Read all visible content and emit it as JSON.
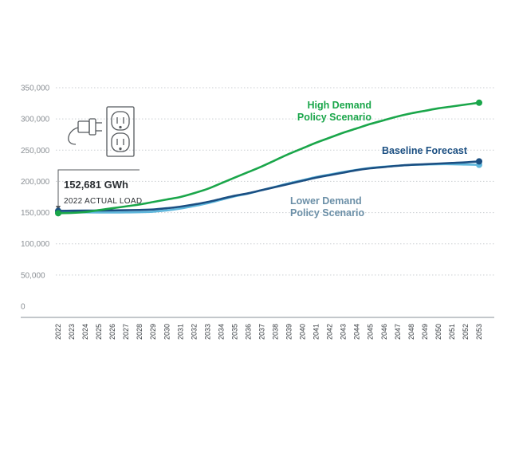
{
  "chart_data": {
    "type": "line",
    "x": [
      "2022",
      "2023",
      "2024",
      "2025",
      "2026",
      "2027",
      "2028",
      "2029",
      "2030",
      "2031",
      "2032",
      "2033",
      "2034",
      "2035",
      "2036",
      "2037",
      "2038",
      "2039",
      "2040",
      "2041",
      "2042",
      "2043",
      "2044",
      "2045",
      "2046",
      "2047",
      "2048",
      "2049",
      "2050",
      "2051",
      "2052",
      "2053"
    ],
    "ylim": [
      0,
      350000
    ],
    "yticks": [
      "0",
      "50,000",
      "100,000",
      "150,000",
      "200,000",
      "250,000",
      "300,000",
      "350,000"
    ],
    "grid": true,
    "series": [
      {
        "name": "High Demand Policy Scenario",
        "name_lines": [
          "High Demand",
          "Policy Scenario"
        ],
        "color": "#1aa64a",
        "values": [
          149000,
          149500,
          151000,
          154000,
          157000,
          160000,
          163000,
          167000,
          171000,
          175000,
          181000,
          188000,
          197000,
          206000,
          215000,
          224000,
          234000,
          244000,
          253000,
          262000,
          270000,
          278000,
          285000,
          292000,
          298000,
          304000,
          309000,
          313000,
          317000,
          320000,
          323000,
          326000
        ]
      },
      {
        "name": "Baseline Forecast",
        "name_lines": [
          "Baseline Forecast"
        ],
        "color": "#1b4f82",
        "values": [
          152681,
          153000,
          153200,
          153300,
          153500,
          153800,
          154200,
          155000,
          157000,
          159500,
          163000,
          167000,
          172000,
          177000,
          181000,
          186000,
          191000,
          196000,
          201000,
          206000,
          210000,
          214000,
          218000,
          221000,
          223000,
          225000,
          226500,
          227500,
          228500,
          229500,
          230500,
          232000
        ]
      },
      {
        "name": "Lower Demand Policy Scenario",
        "name_lines": [
          "Lower Demand",
          "Policy Scenario"
        ],
        "color": "#5fb7dc",
        "values": [
          150500,
          150500,
          150300,
          150200,
          150200,
          150300,
          150600,
          151500,
          153500,
          156500,
          160500,
          165000,
          170500,
          176000,
          180500,
          186000,
          191500,
          197000,
          202000,
          207000,
          211000,
          215000,
          218500,
          221500,
          223500,
          225000,
          226500,
          227000,
          227500,
          227500,
          227000,
          226500
        ]
      }
    ],
    "annotation": {
      "value": "152,681 GWh",
      "caption": "2022 ACTUAL LOAD"
    }
  },
  "icons": [
    "power-plug-icon",
    "electrical-outlet-icon"
  ]
}
